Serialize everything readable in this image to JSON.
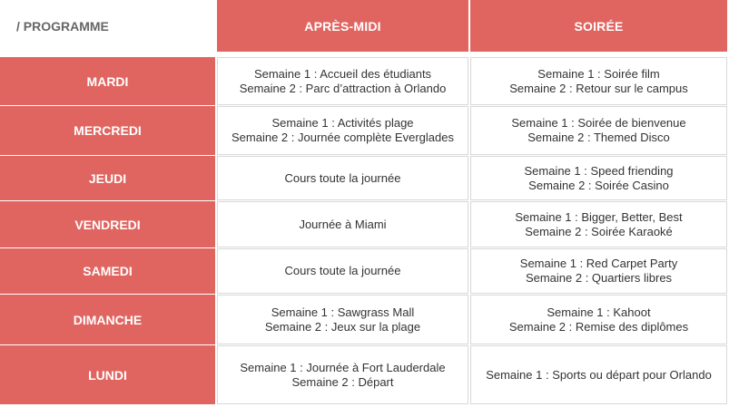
{
  "header": {
    "programme_label": "/ PROGRAMME",
    "columns": [
      "APRÈS-MIDI",
      "SOIRÉE"
    ]
  },
  "rows": [
    {
      "day": "MARDI",
      "afternoon": [
        "Semaine 1 : Accueil des étudiants",
        "Semaine 2 : Parc d’attraction à Orlando"
      ],
      "evening": [
        "Semaine 1 : Soirée film",
        "Semaine 2 : Retour sur le campus"
      ]
    },
    {
      "day": "MERCREDI",
      "afternoon": [
        "Semaine 1 : Activités plage",
        "Semaine 2 : Journée complète Everglades"
      ],
      "evening": [
        "Semaine 1 : Soirée de bienvenue",
        "Semaine 2 : Themed Disco"
      ]
    },
    {
      "day": "JEUDI",
      "afternoon": [
        "Cours toute la journée"
      ],
      "evening": [
        "Semaine 1 : Speed friending",
        "Semaine 2 : Soirée Casino"
      ]
    },
    {
      "day": "VENDREDI",
      "afternoon": [
        "Journée à Miami"
      ],
      "evening": [
        "Semaine 1 : Bigger, Better, Best",
        "Semaine 2 : Soirée Karaoké"
      ]
    },
    {
      "day": "SAMEDI",
      "afternoon": [
        "Cours toute la journée"
      ],
      "evening": [
        "Semaine 1 : Red Carpet Party",
        "Semaine 2 : Quartiers libres"
      ]
    },
    {
      "day": "DIMANCHE",
      "afternoon": [
        "Semaine 1 : Sawgrass Mall",
        "Semaine 2 : Jeux sur la plage"
      ],
      "evening": [
        "Semaine 1 : Kahoot",
        "Semaine 2 : Remise des diplômes"
      ]
    },
    {
      "day": "LUNDI",
      "afternoon": [
        "Semaine 1 : Journée à Fort Lauderdale",
        "Semaine 2 : Départ"
      ],
      "evening": [
        "Semaine 1 : Sports ou départ pour Orlando"
      ]
    }
  ],
  "colors": {
    "accent": "#e06560",
    "header_text": "#ffffff",
    "label_text": "#666666",
    "body_text": "#333333"
  }
}
